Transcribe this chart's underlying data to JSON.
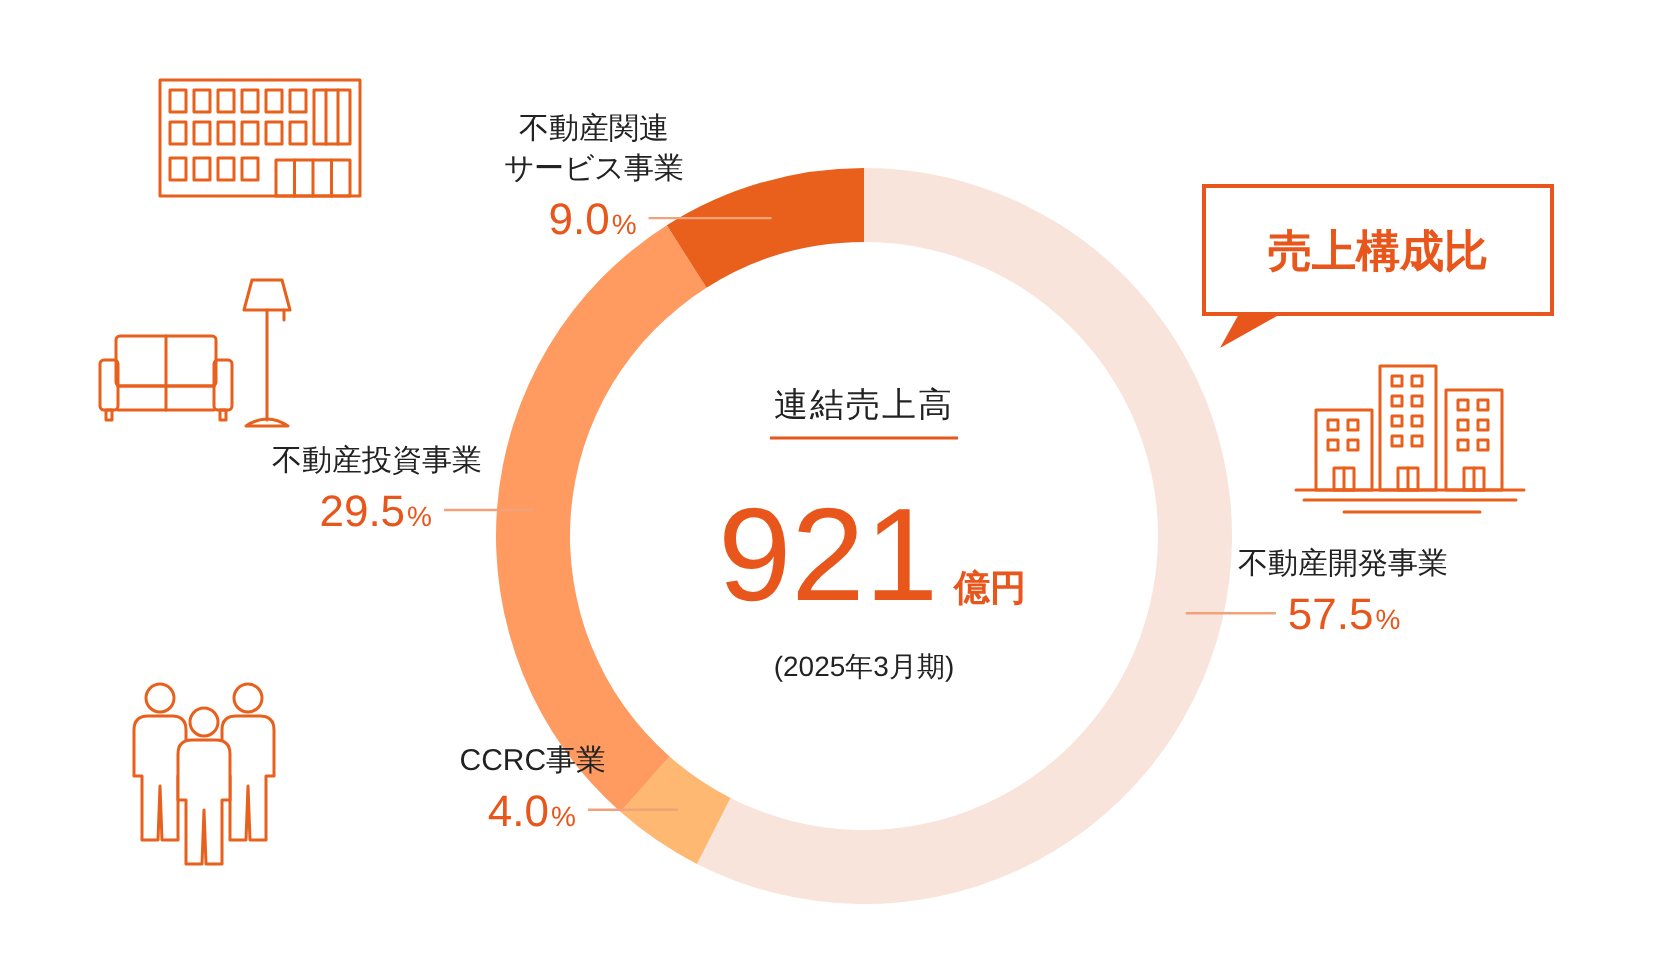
{
  "chart_data": {
    "type": "donut",
    "title": "売上構成比",
    "categories": [
      "不動産開発事業",
      "CCRC事業",
      "不動産投資事業",
      "不動産関連サービス事業"
    ],
    "values": [
      57.5,
      4.0,
      29.5,
      9.0
    ],
    "colors": [
      "#f9e4dc",
      "#ffb872",
      "#ff9a60",
      "#e8601c"
    ],
    "value_labels": [
      "57.5%",
      "4.0%",
      "29.5%",
      "9.0%"
    ],
    "annotations": [
      "連結売上高",
      "921億円",
      "(2025年3月期)"
    ]
  }
}
